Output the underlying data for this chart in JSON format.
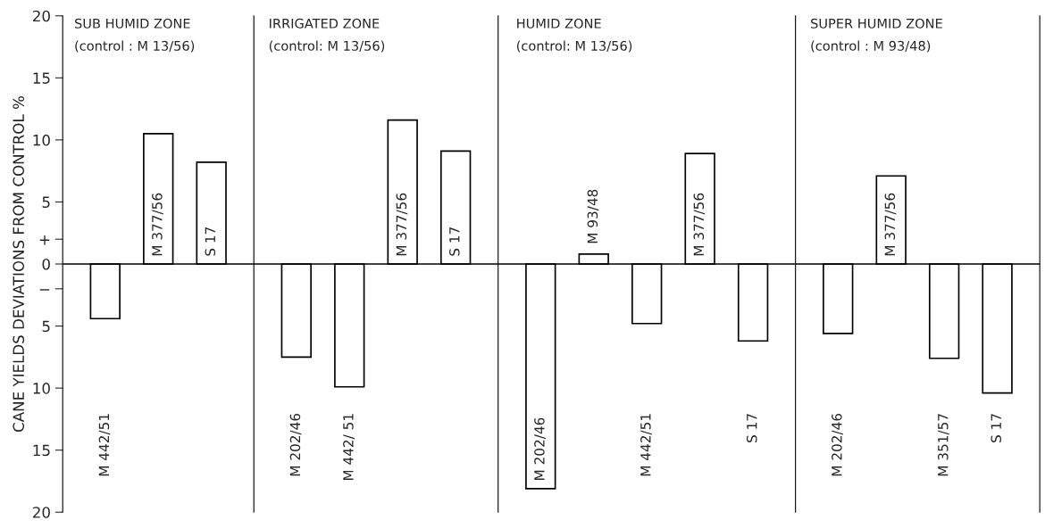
{
  "chart_data": [
    {
      "type": "bar",
      "title": "SUB HUMID ZONE",
      "subtitle": "(control : M 13/56)",
      "ylabel": "CANE YIELDS DEVIATIONS FROM CONTROL %",
      "categories": [
        "M 442/51",
        "M 377/56",
        "S 17"
      ],
      "values": [
        -4.4,
        10.5,
        8.2
      ],
      "color": "#ffffff",
      "ylim": [
        -20,
        20
      ],
      "yticks": [
        20,
        15,
        10,
        5,
        {
          "value": 2,
          "label": "+"
        },
        0,
        {
          "value": -2,
          "label": "−"
        },
        {
          "value": -5,
          "label": "5"
        },
        {
          "value": -10,
          "label": "10"
        },
        {
          "value": -15,
          "label": "15"
        },
        {
          "value": -20,
          "label": "20"
        }
      ],
      "tick_labels": "y",
      "ref_lines": [
        {
          "axis": "y",
          "value": 0
        }
      ],
      "grid": false,
      "legend": false
    },
    {
      "type": "bar",
      "title": "IRRIGATED ZONE",
      "subtitle": "(control: M 13/56)",
      "categories": [
        "M 202/46",
        "M 442/ 51",
        "M 377/56",
        "S 17"
      ],
      "values": [
        -7.5,
        -9.9,
        11.6,
        9.1
      ],
      "color": "#ffffff",
      "ylim": [
        -20,
        20
      ],
      "tick_labels": false,
      "ref_lines": [
        {
          "axis": "y",
          "value": 0
        }
      ],
      "grid": false,
      "legend": false
    },
    {
      "type": "bar",
      "title": "HUMID ZONE",
      "subtitle": "(control: M 13/56)",
      "categories": [
        "M 202/46",
        "M 93/48",
        "M 442/51",
        "M 377/56",
        "S 17"
      ],
      "values": [
        -18.1,
        0.8,
        -4.8,
        8.9,
        -6.2
      ],
      "color": "#ffffff",
      "ylim": [
        -20,
        20
      ],
      "tick_labels": false,
      "ref_lines": [
        {
          "axis": "y",
          "value": 0
        }
      ],
      "grid": false,
      "legend": false
    },
    {
      "type": "bar",
      "title": "SUPER HUMID ZONE",
      "subtitle": "(control : M 93/48)",
      "categories": [
        "M 202/46",
        "M 377/56",
        "M 351/57",
        "S 17"
      ],
      "values": [
        -5.6,
        7.1,
        -7.6,
        -10.4
      ],
      "color": "#ffffff",
      "ylim": [
        -20,
        20
      ],
      "tick_labels": false,
      "ref_lines": [
        {
          "axis": "y",
          "value": 0
        }
      ],
      "grid": false,
      "legend": false
    }
  ]
}
